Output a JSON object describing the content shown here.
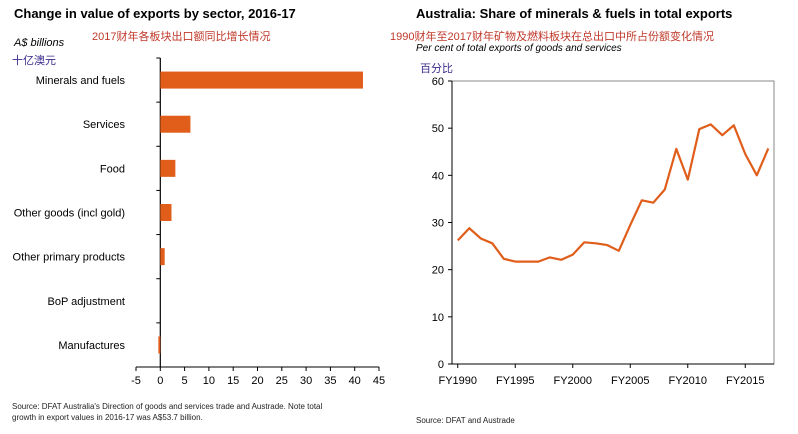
{
  "left_chart": {
    "title": "Change in value of exports by sector, 2016-17",
    "subtitle_cn": "2017财年各板块出口额同比增长情况",
    "unit": "A$ billions",
    "unit_cn": "十亿澳元",
    "source": "Source: DFAT Australia's Direction of goods and services trade and Austrade.  Note total",
    "source2": "growth in export values in 2016-17 was A$53.7 billion."
  },
  "right_chart": {
    "title": "Australia: Share of minerals & fuels in total exports",
    "subtitle_cn": "1990财年至2017财年矿物及燃料板块在总出口中所占份额变化情况",
    "unit": "Per cent of total exports of goods and services",
    "unit_cn": "百分比",
    "source": "Source: DFAT and Austrade"
  },
  "chart_data": [
    {
      "type": "bar",
      "orientation": "horizontal",
      "title": "Change in value of exports by sector, 2016-17",
      "ylabel": "A$ billions",
      "categories": [
        "Minerals and fuels",
        "Services",
        "Food",
        "Other goods (incl gold)",
        "Other primary products",
        "BoP adjustment",
        "Manufactures"
      ],
      "values": [
        41.7,
        6.2,
        3.1,
        2.3,
        0.9,
        0.0,
        -0.4
      ],
      "xlim": [
        -5,
        45
      ],
      "xticks": [
        "-5",
        "0",
        "5",
        "10",
        "15",
        "20",
        "25",
        "30",
        "35",
        "40",
        "45"
      ],
      "color": "#e05d1a",
      "grid": false
    },
    {
      "type": "line",
      "title": "Australia: Share of minerals & fuels in total exports",
      "ylabel": "Per cent of total exports of goods and services",
      "x": [
        1990,
        1991,
        1992,
        1993,
        1994,
        1995,
        1996,
        1997,
        1998,
        1999,
        2000,
        2001,
        2002,
        2003,
        2004,
        2005,
        2006,
        2007,
        2008,
        2009,
        2010,
        2011,
        2012,
        2013,
        2014,
        2015,
        2016,
        2017
      ],
      "series": [
        {
          "values": [
            26.2,
            28.8,
            26.6,
            25.6,
            22.3,
            21.7,
            21.7,
            21.7,
            22.6,
            22.1,
            23.2,
            25.8,
            25.6,
            25.2,
            24.0,
            29.5,
            34.7,
            34.2,
            37.0,
            45.6,
            39.1,
            49.8,
            50.8,
            48.5,
            50.6,
            44.5,
            40.0,
            45.7
          ]
        }
      ],
      "xticks": [
        "FY1990",
        "FY1995",
        "FY2000",
        "FY2005",
        "FY2010",
        "FY2015"
      ],
      "xtick_values": [
        1990,
        1995,
        2000,
        2005,
        2010,
        2015
      ],
      "ylim": [
        0,
        60
      ],
      "yticks": [
        "0",
        "10",
        "20",
        "30",
        "40",
        "50",
        "60"
      ],
      "color": "#e05d1a",
      "grid": false
    }
  ]
}
